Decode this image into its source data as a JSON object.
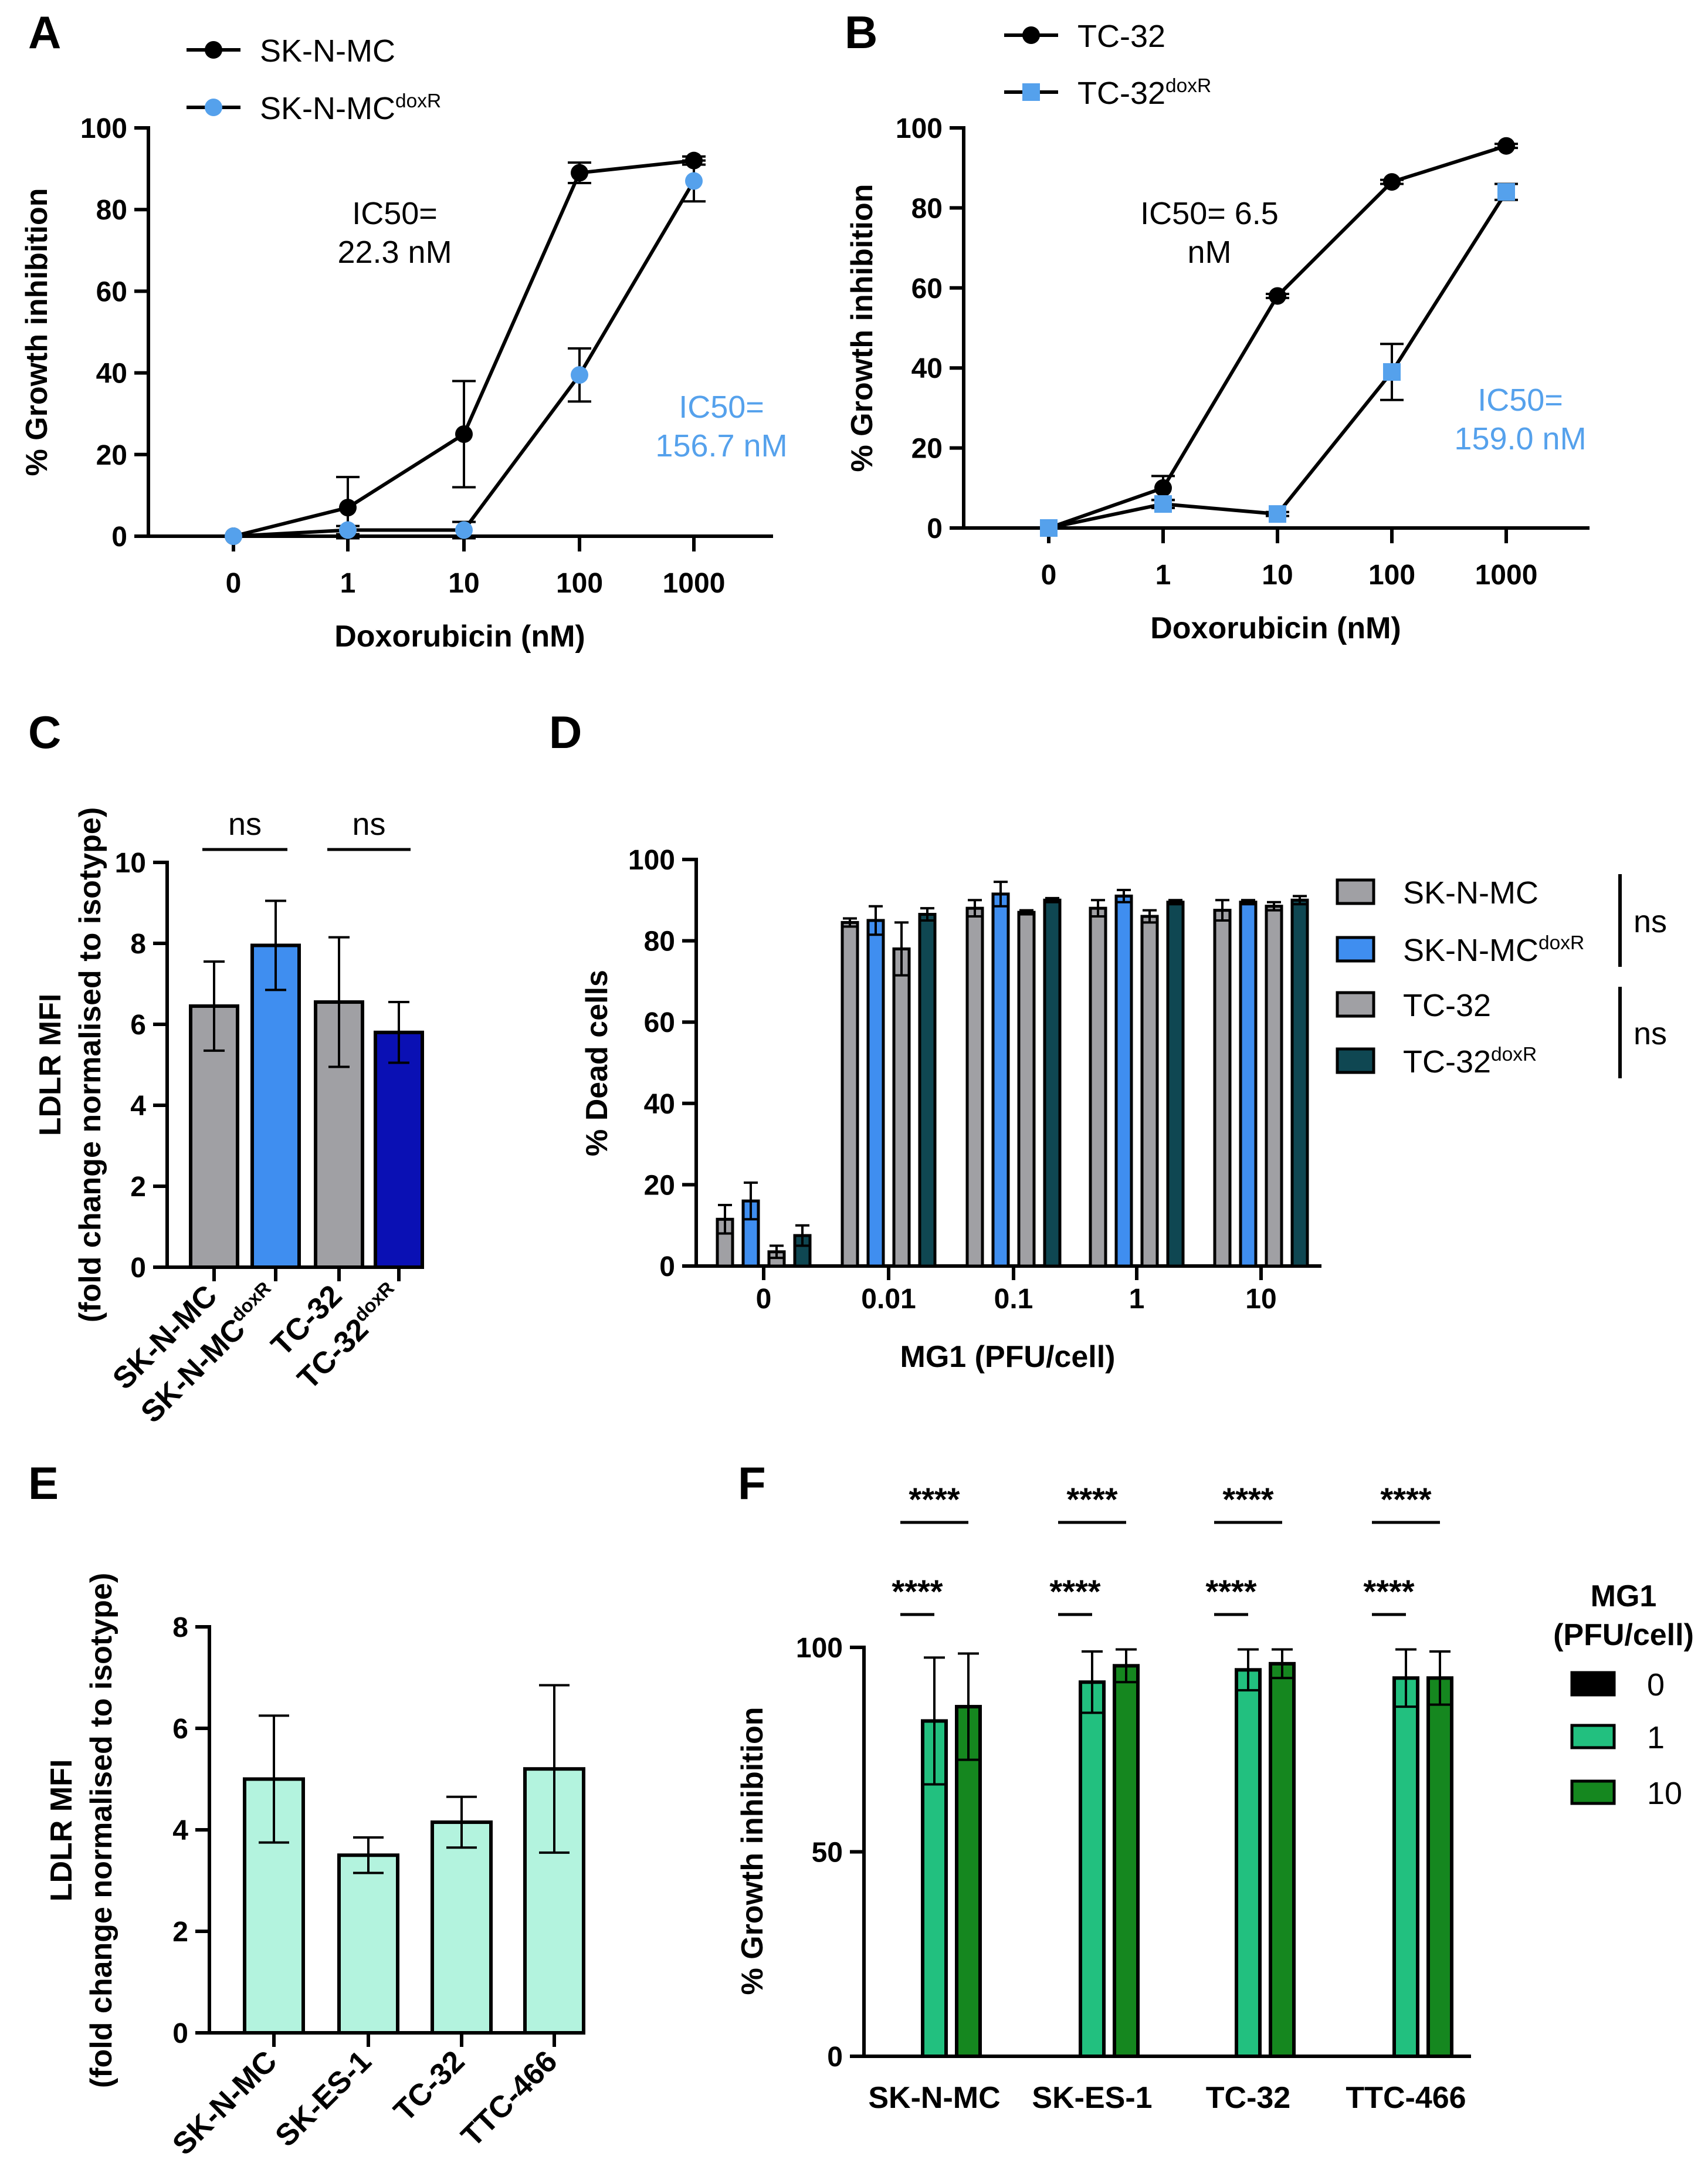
{
  "panels": {
    "A": "A",
    "B": "B",
    "C": "C",
    "D": "D",
    "E": "E",
    "F": "F"
  },
  "colors": {
    "black": "#000000",
    "light_blue": "#55a1ec",
    "gray": "#a0a0a4",
    "mid_blue": "#3f8ef0",
    "dark_blue": "#0a10b4",
    "dark_teal": "#0f4752",
    "mint": "#b3f3de",
    "green": "#22c07f",
    "dark_green": "#15871f"
  },
  "chart_data": [
    {
      "panel": "A",
      "type": "line",
      "xlabel": "Doxorubicin (nM)",
      "ylabel": "% Growth inhibition",
      "x_categories": [
        "0",
        "1",
        "10",
        "100",
        "1000"
      ],
      "ylim": [
        0,
        100
      ],
      "yticks": [
        "0",
        "20",
        "40",
        "60",
        "80",
        "100"
      ],
      "series": [
        {
          "name": "SK-N-MC",
          "sup": "",
          "marker": "circle",
          "color": "#000000",
          "values": [
            0,
            7,
            25,
            89,
            92
          ],
          "errors": [
            0,
            7.5,
            13,
            2.5,
            1
          ]
        },
        {
          "name": "SK-N-MC",
          "sup": "doxR",
          "marker": "circle",
          "color": "#55a1ec",
          "values": [
            0,
            1.5,
            1.5,
            39.5,
            87
          ],
          "errors": [
            0,
            1,
            2,
            6.5,
            5
          ]
        }
      ],
      "annotations": [
        {
          "lines": [
            "IC50=",
            "22.3 nM"
          ],
          "color": "#000000"
        },
        {
          "lines": [
            "IC50=",
            "156.7 nM"
          ],
          "color": "#55a1ec"
        }
      ]
    },
    {
      "panel": "B",
      "type": "line",
      "xlabel": "Doxorubicin (nM)",
      "ylabel": "% Growth inhibition",
      "x_categories": [
        "0",
        "1",
        "10",
        "100",
        "1000"
      ],
      "ylim": [
        0,
        100
      ],
      "yticks": [
        "0",
        "20",
        "40",
        "60",
        "80",
        "100"
      ],
      "series": [
        {
          "name": "TC-32",
          "sup": "",
          "marker": "circle",
          "color": "#000000",
          "values": [
            0,
            10,
            58,
            86.5,
            95.5
          ],
          "errors": [
            0,
            3,
            0.5,
            0.5,
            0.5
          ]
        },
        {
          "name": "TC-32",
          "sup": "doxR",
          "marker": "square",
          "color": "#55a1ec",
          "values": [
            0,
            6,
            3.5,
            39,
            84
          ],
          "errors": [
            0,
            1,
            0.5,
            7,
            2
          ]
        }
      ],
      "annotations": [
        {
          "lines": [
            "IC50= 6.5",
            "nM"
          ],
          "color": "#000000"
        },
        {
          "lines": [
            "IC50=",
            "159.0 nM"
          ],
          "color": "#55a1ec"
        }
      ]
    },
    {
      "panel": "C",
      "type": "bar",
      "ylabel_lines": [
        "LDLR MFI",
        "(fold change normalised to isotype)"
      ],
      "ylim": [
        0,
        10
      ],
      "yticks": [
        "0",
        "2",
        "4",
        "6",
        "8",
        "10"
      ],
      "bars": [
        {
          "label": "SK-N-MC",
          "sup": "",
          "value": 6.45,
          "error": 1.1,
          "color": "#a0a0a4"
        },
        {
          "label": "SK-N-MC",
          "sup": "doxR",
          "value": 7.95,
          "error": 1.1,
          "color": "#3f8ef0"
        },
        {
          "label": "TC-32",
          "sup": "",
          "value": 6.55,
          "error": 1.6,
          "color": "#a0a0a4"
        },
        {
          "label": "TC-32",
          "sup": "doxR",
          "value": 5.8,
          "error": 0.75,
          "color": "#0a10b4"
        }
      ],
      "significance": [
        {
          "text": "ns",
          "pair": [
            0,
            1
          ]
        },
        {
          "text": "ns",
          "pair": [
            2,
            3
          ]
        }
      ]
    },
    {
      "panel": "D",
      "type": "bar",
      "xlabel": "MG1 (PFU/cell)",
      "ylabel": "% Dead cells",
      "ylim": [
        0,
        100
      ],
      "yticks": [
        "0",
        "20",
        "40",
        "60",
        "80",
        "100"
      ],
      "categories": [
        "0",
        "0.01",
        "0.1",
        "1",
        "10"
      ],
      "series": [
        {
          "name": "SK-N-MC",
          "sup": "",
          "color": "#a0a0a4",
          "values": [
            11.5,
            84.5,
            88,
            88,
            87.5
          ],
          "errors": [
            3.5,
            1,
            2,
            2,
            2.5
          ]
        },
        {
          "name": "SK-N-MC",
          "sup": "doxR",
          "color": "#3f8ef0",
          "values": [
            16,
            85,
            91.5,
            91,
            89.5
          ],
          "errors": [
            4.5,
            3.5,
            3,
            1.5,
            0.5
          ]
        },
        {
          "name": "TC-32",
          "sup": "",
          "color": "#a0a0a4",
          "values": [
            3.5,
            78,
            87,
            86,
            88.5
          ],
          "errors": [
            1.5,
            6.5,
            0.5,
            1.5,
            1
          ]
        },
        {
          "name": "TC-32",
          "sup": "doxR",
          "color": "#0f4752",
          "values": [
            7.5,
            86.5,
            90,
            89.5,
            90
          ],
          "errors": [
            2.5,
            1.5,
            0.5,
            0.5,
            1
          ]
        }
      ],
      "legend_groups": [
        {
          "text": "ns",
          "series": [
            0,
            1
          ]
        },
        {
          "text": "ns",
          "series": [
            2,
            3
          ]
        }
      ]
    },
    {
      "panel": "E",
      "type": "bar",
      "ylabel_lines": [
        "LDLR MFI",
        "(fold change normalised to isotype)"
      ],
      "ylim": [
        0,
        8
      ],
      "yticks": [
        "0",
        "2",
        "4",
        "6",
        "8"
      ],
      "bars": [
        {
          "label": "SK-N-MC",
          "value": 5.0,
          "error": 1.25,
          "color": "#b3f3de"
        },
        {
          "label": "SK-ES-1",
          "value": 3.5,
          "error": 0.35,
          "color": "#b3f3de"
        },
        {
          "label": "TC-32",
          "value": 4.15,
          "error": 0.5,
          "color": "#b3f3de"
        },
        {
          "label": "TTC-466",
          "value": 5.2,
          "error": 1.65,
          "color": "#b3f3de"
        }
      ]
    },
    {
      "panel": "F",
      "type": "bar",
      "ylabel": "% Growth inhibition",
      "ylim": [
        0,
        100
      ],
      "yticks": [
        "0",
        "50",
        "100"
      ],
      "categories": [
        "SK-N-MC",
        "SK-ES-1",
        "TC-32",
        "TTC-466"
      ],
      "legend_title_lines": [
        "MG1",
        "(PFU/cell)"
      ],
      "series": [
        {
          "name": "0",
          "color": "#000000",
          "values": [
            0,
            0,
            0,
            0
          ],
          "errors": [
            0,
            0,
            0,
            0
          ]
        },
        {
          "name": "1",
          "color": "#22c07f",
          "values": [
            82,
            91.5,
            94.5,
            92.5
          ],
          "errors": [
            15.5,
            7.5,
            5,
            7
          ]
        },
        {
          "name": "10",
          "color": "#15871f",
          "values": [
            85.5,
            95.5,
            96,
            92.5
          ],
          "errors": [
            13,
            4,
            3.5,
            6.5
          ]
        }
      ],
      "significance": [
        {
          "text": "****",
          "pair": [
            0,
            2
          ]
        },
        {
          "text": "****",
          "pair": [
            0,
            1
          ]
        }
      ]
    }
  ]
}
